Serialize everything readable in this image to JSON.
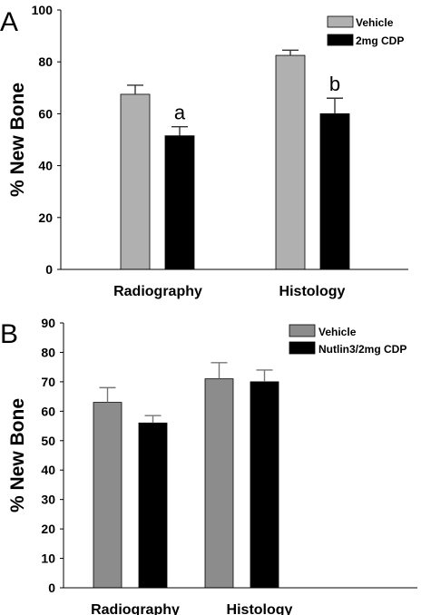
{
  "chart_data": [
    {
      "panel": "A",
      "type": "bar",
      "categories": [
        "Radiography",
        "Histology"
      ],
      "series": [
        {
          "name": "Vehicle",
          "values": [
            67.5,
            82.5
          ],
          "errors": [
            3.5,
            2.0
          ],
          "color": "#b0b0b0"
        },
        {
          "name": "2mg CDP",
          "values": [
            51.5,
            60.0
          ],
          "errors": [
            3.5,
            6.0
          ],
          "color": "#000000"
        }
      ],
      "annotations": [
        {
          "category": 0,
          "series": 1,
          "text": "a"
        },
        {
          "category": 1,
          "series": 1,
          "text": "b"
        }
      ],
      "ylabel": "% New Bone",
      "ylim": [
        0,
        100
      ],
      "yticks": [
        0,
        20,
        40,
        60,
        80,
        100
      ],
      "legend": "top-right"
    },
    {
      "panel": "B",
      "type": "bar",
      "categories": [
        "Radiography",
        "Histology"
      ],
      "series": [
        {
          "name": "Vehicle",
          "values": [
            63,
            71
          ],
          "errors": [
            5,
            5.5
          ],
          "color": "#8c8c8c"
        },
        {
          "name": "Nutlin3/2mg CDP",
          "values": [
            56,
            70
          ],
          "errors": [
            2.5,
            4
          ],
          "color": "#000000"
        }
      ],
      "annotations": [],
      "ylabel": "% New Bone",
      "ylim": [
        0,
        90
      ],
      "yticks": [
        0,
        10,
        20,
        30,
        40,
        50,
        60,
        70,
        80,
        90
      ],
      "legend": "top-right"
    }
  ]
}
